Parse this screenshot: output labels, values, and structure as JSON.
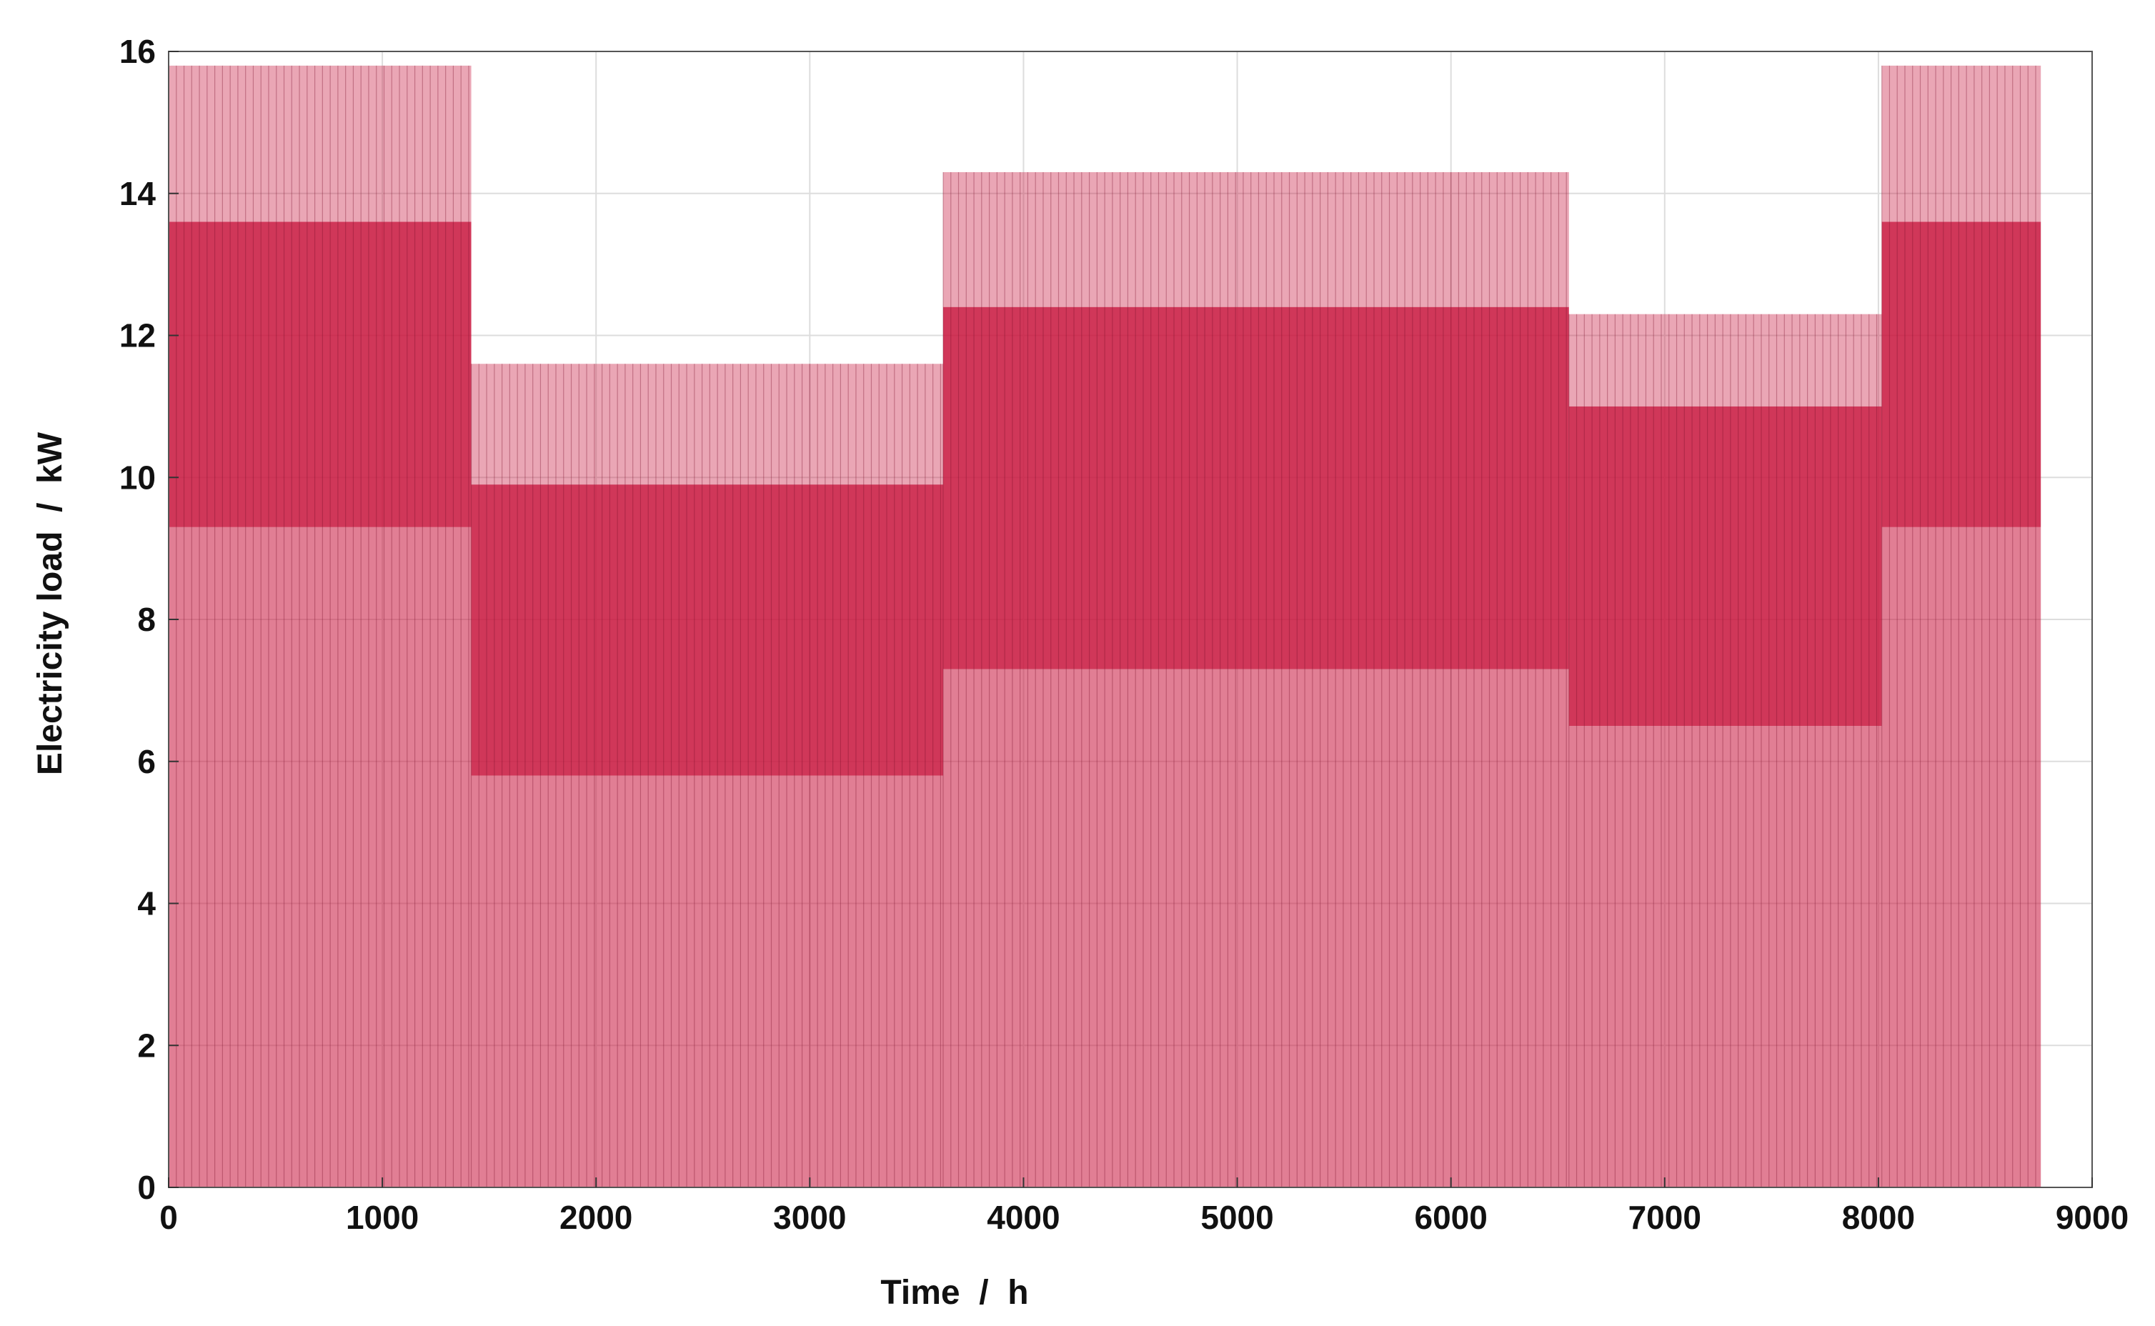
{
  "chart_data": {
    "type": "bar",
    "title": "",
    "xlabel": "Time  /  h",
    "ylabel": "Electricity load  /  kW",
    "xlim": [
      0,
      9000
    ],
    "ylim": [
      0,
      16
    ],
    "xticks": [
      "0",
      "1000",
      "2000",
      "3000",
      "4000",
      "5000",
      "6000",
      "7000",
      "8000",
      "9000"
    ],
    "yticks": [
      "0",
      "2",
      "4",
      "6",
      "8",
      "10",
      "12",
      "14",
      "16"
    ],
    "grid": true,
    "legend": "none",
    "bar_color": "#c8143c",
    "background_color": "#ffffff",
    "bands_description": "dense hourly load spikes; values are per-season levels",
    "periods": [
      {
        "x_start": 0,
        "x_end": 1416,
        "base": 9.3,
        "mid": 13.6,
        "peak": 15.8
      },
      {
        "x_start": 1416,
        "x_end": 3624,
        "base": 5.8,
        "mid": 9.9,
        "peak": 11.6
      },
      {
        "x_start": 3624,
        "x_end": 6552,
        "base": 7.3,
        "mid": 12.4,
        "peak": 14.3
      },
      {
        "x_start": 6552,
        "x_end": 8016,
        "base": 6.5,
        "mid": 11.0,
        "peak": 12.3
      },
      {
        "x_start": 8016,
        "x_end": 8760,
        "base": 9.3,
        "mid": 13.6,
        "peak": 15.8
      }
    ]
  }
}
